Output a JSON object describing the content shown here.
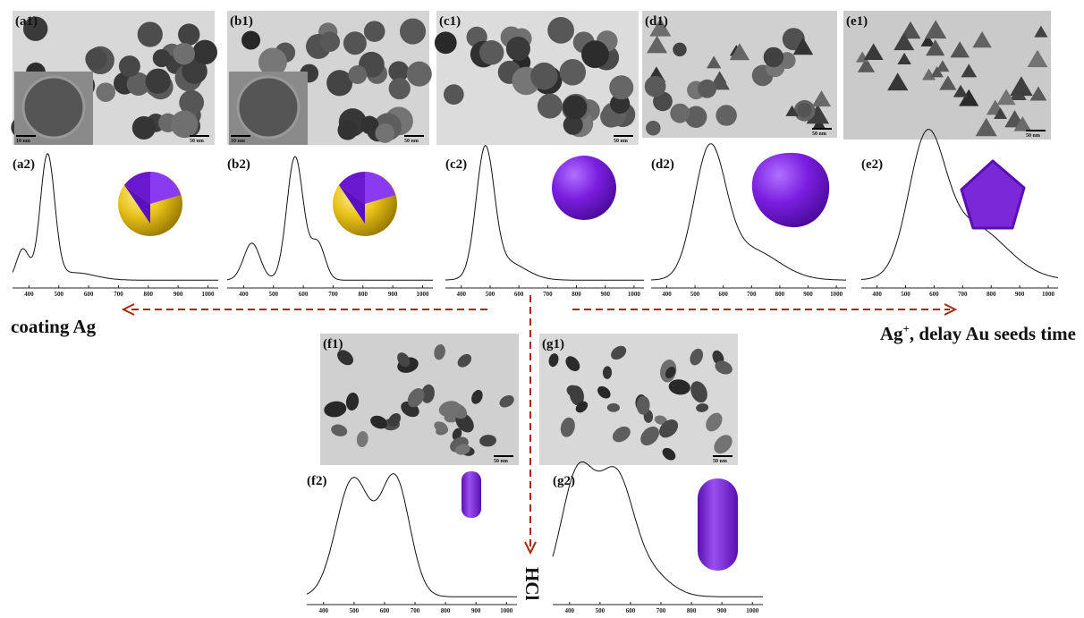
{
  "panels": [
    {
      "image_label": "(a1)",
      "spectrum_label": "(a2)",
      "scale_bars": [
        "10 nm",
        "50 nm"
      ],
      "ticks": [
        "400",
        "500",
        "600",
        "700",
        "800",
        "900",
        "1000"
      ]
    },
    {
      "image_label": "(b1)",
      "spectrum_label": "(b2)",
      "scale_bars": [
        "10 nm",
        "50 nm"
      ],
      "ticks": [
        "400",
        "500",
        "600",
        "700",
        "800",
        "900",
        "1000"
      ]
    },
    {
      "image_label": "(c1)",
      "spectrum_label": "(c2)",
      "scale_bars": [
        "50 nm"
      ],
      "ticks": [
        "400",
        "500",
        "600",
        "700",
        "800",
        "900",
        "1000"
      ]
    },
    {
      "image_label": "(d1)",
      "spectrum_label": "(d2)",
      "scale_bars": [
        "50 nm"
      ],
      "ticks": [
        "400",
        "500",
        "600",
        "700",
        "800",
        "900",
        "1000"
      ]
    },
    {
      "image_label": "(e1)",
      "spectrum_label": "(e2)",
      "scale_bars": [
        "50 nm"
      ],
      "ticks": [
        "400",
        "500",
        "600",
        "700",
        "800",
        "900",
        "1000"
      ]
    },
    {
      "image_label": "(f1)",
      "spectrum_label": "(f2)",
      "scale_bars": [
        "50 nm"
      ],
      "ticks": [
        "400",
        "500",
        "600",
        "700",
        "800",
        "900",
        "1000"
      ]
    },
    {
      "image_label": "(g1)",
      "spectrum_label": "(g2)",
      "scale_bars": [
        "50 nm"
      ],
      "ticks": [
        "400",
        "500",
        "600",
        "700",
        "800",
        "900",
        "1000"
      ]
    }
  ],
  "arrows": {
    "left": "coating Ag",
    "right": {
      "base": "Ag",
      "sup": "+",
      "rest": ", delay Au seeds time"
    },
    "down": "HCl"
  }
}
